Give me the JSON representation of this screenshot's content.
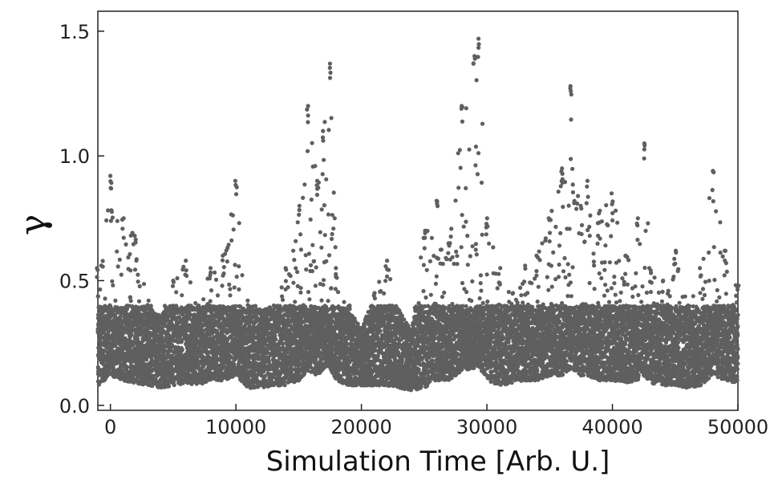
{
  "chart_data": {
    "type": "scatter",
    "title": "",
    "xlabel": "Simulation Time [Arb. U.]",
    "ylabel": "γ",
    "xlim": [
      -1000,
      50000
    ],
    "ylim": [
      -0.02,
      1.58
    ],
    "xticks": [
      0,
      10000,
      20000,
      30000,
      40000,
      50000
    ],
    "xtick_labels": [
      "0",
      "10000",
      "20000",
      "30000",
      "40000",
      "50000"
    ],
    "yticks": [
      0.0,
      0.5,
      1.0,
      1.5
    ],
    "ytick_labels": [
      "0.0",
      "0.5",
      "1.0",
      "1.5"
    ],
    "grid": false,
    "legend": "none",
    "marker_color": "#5f5f5f",
    "series": [
      {
        "values_note_excluded": true,
        "x_range": [
          -1000,
          50000
        ],
        "envelope": [
          [
            -1000,
            0.08,
            0.55
          ],
          [
            0,
            0.12,
            0.92
          ],
          [
            1000,
            0.1,
            0.75
          ],
          [
            2000,
            0.09,
            0.68
          ],
          [
            3000,
            0.08,
            0.42
          ],
          [
            4000,
            0.07,
            0.35
          ],
          [
            5000,
            0.08,
            0.5
          ],
          [
            6000,
            0.09,
            0.58
          ],
          [
            7000,
            0.08,
            0.4
          ],
          [
            8000,
            0.1,
            0.55
          ],
          [
            9000,
            0.1,
            0.6
          ],
          [
            10000,
            0.12,
            0.9
          ],
          [
            11000,
            0.07,
            0.42
          ],
          [
            12000,
            0.07,
            0.38
          ],
          [
            13000,
            0.08,
            0.4
          ],
          [
            14000,
            0.08,
            0.55
          ],
          [
            15000,
            0.1,
            0.8
          ],
          [
            15700,
            0.14,
            1.2
          ],
          [
            16500,
            0.12,
            0.9
          ],
          [
            17000,
            0.15,
            1.1
          ],
          [
            17500,
            0.15,
            1.37
          ],
          [
            18000,
            0.1,
            0.55
          ],
          [
            19000,
            0.08,
            0.4
          ],
          [
            20000,
            0.08,
            0.3
          ],
          [
            21000,
            0.08,
            0.45
          ],
          [
            22000,
            0.08,
            0.58
          ],
          [
            23000,
            0.07,
            0.38
          ],
          [
            24000,
            0.06,
            0.3
          ],
          [
            25000,
            0.07,
            0.7
          ],
          [
            26000,
            0.1,
            0.82
          ],
          [
            27000,
            0.1,
            0.65
          ],
          [
            28000,
            0.14,
            1.2
          ],
          [
            29000,
            0.15,
            1.4
          ],
          [
            29300,
            0.16,
            1.47
          ],
          [
            30000,
            0.1,
            0.75
          ],
          [
            31000,
            0.08,
            0.55
          ],
          [
            32000,
            0.09,
            0.45
          ],
          [
            33000,
            0.1,
            0.56
          ],
          [
            34000,
            0.1,
            0.6
          ],
          [
            35000,
            0.12,
            0.75
          ],
          [
            36000,
            0.12,
            0.95
          ],
          [
            36700,
            0.15,
            1.28
          ],
          [
            37500,
            0.12,
            0.8
          ],
          [
            38000,
            0.12,
            0.9
          ],
          [
            39000,
            0.1,
            0.78
          ],
          [
            40000,
            0.1,
            0.85
          ],
          [
            41000,
            0.09,
            0.6
          ],
          [
            42000,
            0.1,
            0.75
          ],
          [
            42500,
            0.12,
            1.05
          ],
          [
            43000,
            0.09,
            0.55
          ],
          [
            44000,
            0.08,
            0.5
          ],
          [
            45000,
            0.08,
            0.62
          ],
          [
            46000,
            0.07,
            0.4
          ],
          [
            47000,
            0.08,
            0.55
          ],
          [
            48000,
            0.12,
            0.94
          ],
          [
            49000,
            0.1,
            0.62
          ],
          [
            50000,
            0.09,
            0.48
          ]
        ],
        "typical_level": 0.22
      }
    ]
  }
}
